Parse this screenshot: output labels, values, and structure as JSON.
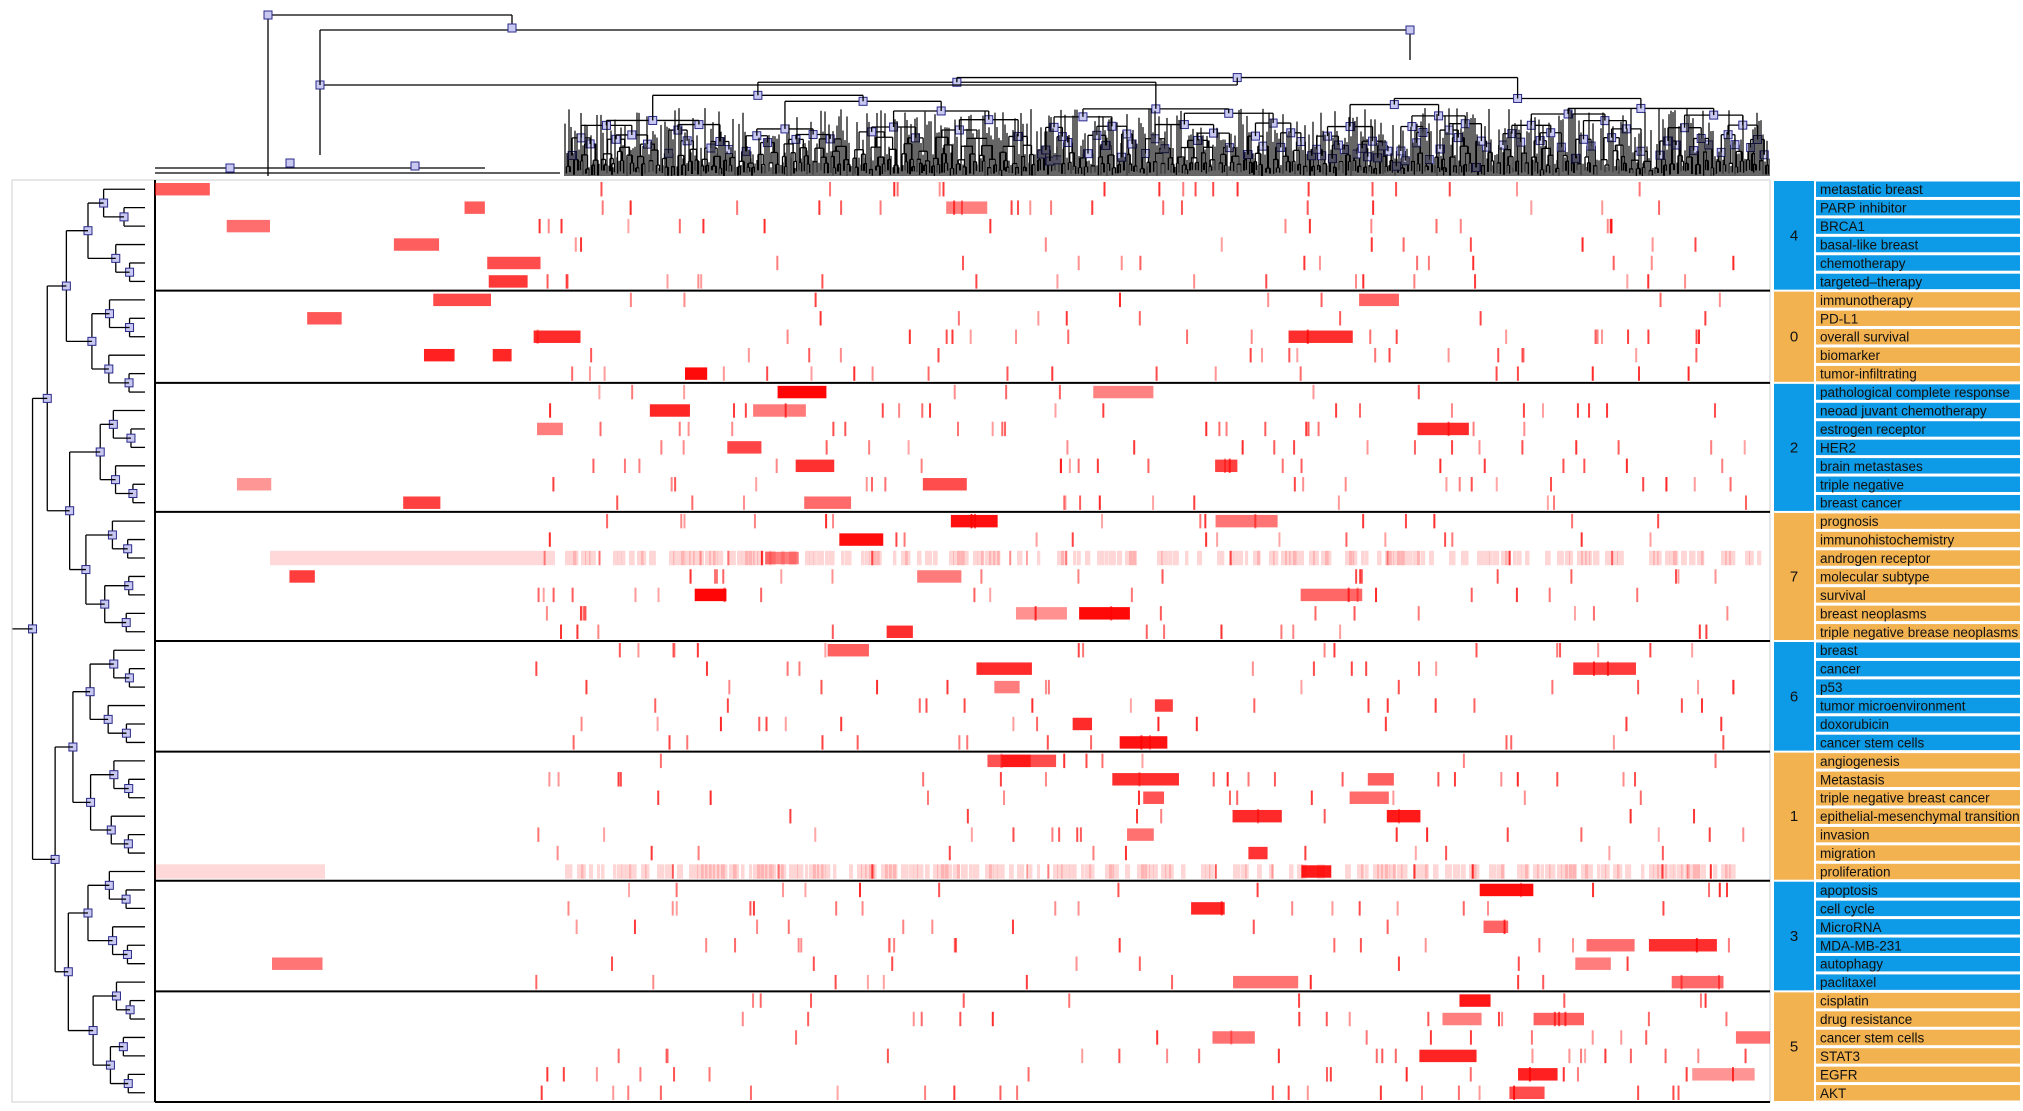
{
  "chart_data": {
    "type": "heatmap",
    "title": "",
    "xlabel": "",
    "ylabel": "",
    "grid": false,
    "legend": "none",
    "colors": {
      "cluster_blue": "#0d9ae6",
      "cluster_orange": "#f3b250",
      "cell_red": "#ff0000",
      "node_fill": "#c8c8f0",
      "node_stroke": "#2a2a8a",
      "tree_line": "#000000"
    },
    "row_dendrogram": true,
    "column_dendrogram": true,
    "clusters": [
      {
        "id": "4",
        "color": "blue",
        "keywords": [
          "metastatic breast",
          "PARP inhibitor",
          "BRCA1",
          "basal-like breast",
          "chemotherapy",
          "targeted–therapy"
        ]
      },
      {
        "id": "0",
        "color": "orange",
        "keywords": [
          "immunotherapy",
          "PD-L1",
          "overall survival",
          "biomarker",
          "tumor-infiltrating"
        ]
      },
      {
        "id": "2",
        "color": "blue",
        "keywords": [
          "pathological complete response",
          "neoad juvant chemotherapy",
          "estrogen receptor",
          "HER2",
          "brain metastases",
          "triple negative",
          "breast cancer"
        ]
      },
      {
        "id": "7",
        "color": "orange",
        "keywords": [
          "prognosis",
          "immunohistochemistry",
          "androgen receptor",
          "molecular subtype",
          "survival",
          "breast neoplasms",
          "triple negative brease neoplasms"
        ]
      },
      {
        "id": "6",
        "color": "blue",
        "keywords": [
          "breast",
          "cancer",
          "p53",
          "tumor microenvironment",
          "doxorubicin",
          "cancer stem cells"
        ]
      },
      {
        "id": "1",
        "color": "orange",
        "keywords": [
          "angiogenesis",
          "Metastasis",
          "triple negative breast cancer",
          "epithelial-mesenchymal transition",
          "invasion",
          "migration",
          "proliferation"
        ]
      },
      {
        "id": "3",
        "color": "blue",
        "keywords": [
          "apoptosis",
          "cell cycle",
          "MicroRNA",
          "MDA-MB-231",
          "autophagy",
          "paclitaxel"
        ]
      },
      {
        "id": "5",
        "color": "orange",
        "keywords": [
          "cisplatin",
          "drug resistance",
          "cancer stem cells",
          "STAT3",
          "EGFR",
          "AKT"
        ]
      }
    ]
  }
}
